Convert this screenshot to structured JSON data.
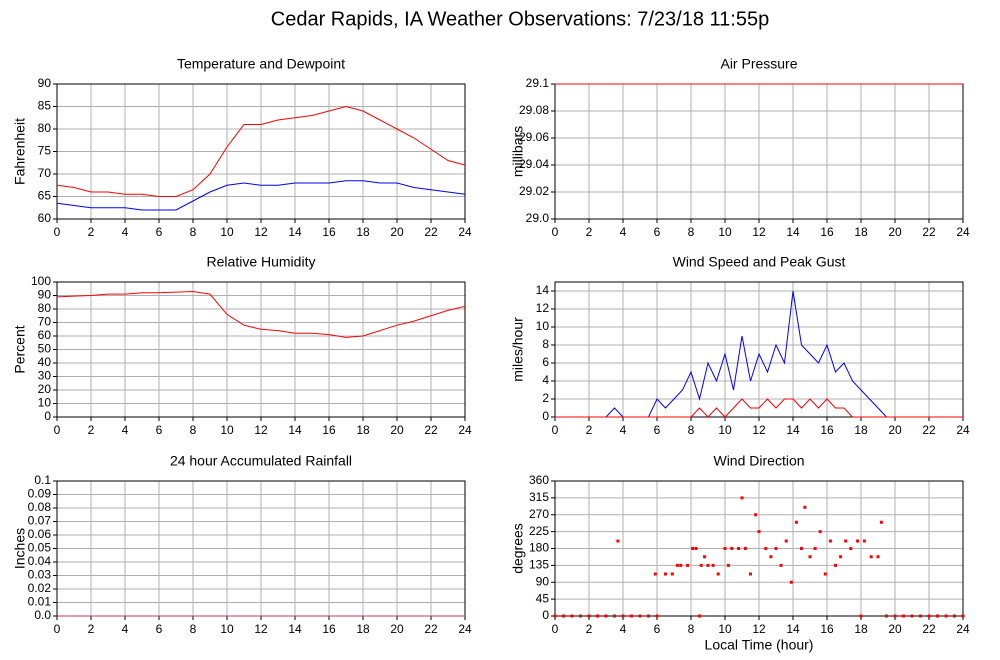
{
  "title": "Cedar Rapids, IA Weather Observations: 7/23/18 11:55p",
  "chart_data": [
    {
      "type": "line",
      "title": "Temperature and Dewpoint",
      "ylabel": "Fahrenheit",
      "grid": true,
      "xlim": [
        0,
        24
      ],
      "xticks": [
        0,
        2,
        4,
        6,
        8,
        10,
        12,
        14,
        16,
        18,
        20,
        22,
        24
      ],
      "ylim": [
        60,
        90
      ],
      "yticks": [
        60,
        65,
        70,
        75,
        80,
        85,
        90
      ],
      "x": [
        0,
        1,
        2,
        3,
        4,
        5,
        6,
        7,
        8,
        9,
        10,
        11,
        12,
        13,
        14,
        15,
        16,
        17,
        18,
        19,
        20,
        21,
        22,
        23,
        24
      ],
      "series": [
        {
          "color": "#ff0000",
          "values": [
            67.5,
            67,
            66,
            66,
            65.5,
            65.5,
            65,
            65,
            66.5,
            70,
            76,
            81,
            81,
            82,
            82.5,
            83,
            84,
            85,
            84,
            82,
            80,
            78,
            75.5,
            73,
            72
          ]
        },
        {
          "color": "#0000ff",
          "values": [
            63.5,
            63,
            62.5,
            62.5,
            62.5,
            62,
            62,
            62,
            64,
            66,
            67.5,
            68,
            67.5,
            67.5,
            68,
            68,
            68,
            68.5,
            68.5,
            68,
            68,
            67,
            66.5,
            66,
            65.5
          ]
        }
      ]
    },
    {
      "type": "line",
      "title": "Air Pressure",
      "ylabel": "millibars",
      "grid": true,
      "xlim": [
        0,
        24
      ],
      "xticks": [
        0,
        2,
        4,
        6,
        8,
        10,
        12,
        14,
        16,
        18,
        20,
        22,
        24
      ],
      "ylim": [
        29,
        29.1
      ],
      "yticks": [
        {
          "value": 29,
          "label": "29.0"
        },
        29.02,
        29.04,
        29.06,
        29.08,
        29.1
      ],
      "x": [
        0,
        24
      ],
      "series": [
        {
          "color": "#ff0000",
          "values": [
            29.1,
            29.1
          ]
        }
      ]
    },
    {
      "type": "line",
      "title": "Relative Humidity",
      "ylabel": "Percent",
      "grid": true,
      "xlim": [
        0,
        24
      ],
      "xticks": [
        0,
        2,
        4,
        6,
        8,
        10,
        12,
        14,
        16,
        18,
        20,
        22,
        24
      ],
      "ylim": [
        0,
        100
      ],
      "yticks": [
        0,
        10,
        20,
        30,
        40,
        50,
        60,
        70,
        80,
        90,
        100
      ],
      "x": [
        0,
        1,
        2,
        3,
        4,
        5,
        6,
        7,
        8,
        9,
        10,
        11,
        12,
        13,
        14,
        15,
        16,
        17,
        18,
        19,
        20,
        21,
        22,
        23,
        24
      ],
      "series": [
        {
          "color": "#ff0000",
          "values": [
            89,
            89.5,
            90,
            91,
            91,
            92,
            92,
            92.5,
            93,
            91,
            76,
            68,
            65,
            64,
            62,
            62,
            61,
            59,
            60,
            64,
            68,
            71,
            75,
            79,
            82
          ]
        }
      ]
    },
    {
      "type": "line",
      "title": "Wind Speed and Peak Gust",
      "ylabel": "miles/hour",
      "grid": true,
      "xlim": [
        0,
        24
      ],
      "xticks": [
        0,
        2,
        4,
        6,
        8,
        10,
        12,
        14,
        16,
        18,
        20,
        22,
        24
      ],
      "ylim": [
        0,
        15
      ],
      "yticks": [
        0,
        2,
        4,
        6,
        8,
        10,
        12,
        14
      ],
      "x": [
        0,
        0.5,
        1,
        1.5,
        2,
        2.5,
        3,
        3.5,
        4,
        4.5,
        5,
        5.5,
        6,
        6.5,
        7,
        7.5,
        8,
        8.5,
        9,
        9.5,
        10,
        10.5,
        11,
        11.5,
        12,
        12.5,
        13,
        13.5,
        14,
        14.5,
        15,
        15.5,
        16,
        16.5,
        17,
        17.5,
        18,
        18.5,
        19,
        19.5,
        20,
        20.5,
        21,
        21.5,
        22,
        22.5,
        23,
        23.5,
        24
      ],
      "series": [
        {
          "color": "#0000ff",
          "values": [
            0,
            0,
            0,
            0,
            0,
            0,
            0,
            1,
            0,
            0,
            0,
            0,
            2,
            1,
            2,
            3,
            5,
            2,
            6,
            4,
            7,
            3,
            9,
            4,
            7,
            5,
            8,
            6,
            14,
            8,
            7,
            6,
            8,
            5,
            6,
            4,
            3,
            2,
            1,
            0,
            0,
            0,
            0,
            0,
            0,
            0,
            0,
            0,
            0
          ]
        },
        {
          "color": "#ff0000",
          "values": [
            0,
            0,
            0,
            0,
            0,
            0,
            0,
            0,
            0,
            0,
            0,
            0,
            0,
            0,
            0,
            0,
            0,
            1,
            0,
            1,
            0,
            1,
            2,
            1,
            1,
            2,
            1,
            2,
            2,
            1,
            2,
            1,
            2,
            1,
            1,
            0,
            0,
            0,
            0,
            0,
            0,
            0,
            0,
            0,
            0,
            0,
            0,
            0,
            0
          ]
        }
      ]
    },
    {
      "type": "line",
      "title": "24 hour Accumulated Rainfall",
      "ylabel": "Inches",
      "grid": true,
      "xlim": [
        0,
        24
      ],
      "xticks": [
        0,
        2,
        4,
        6,
        8,
        10,
        12,
        14,
        16,
        18,
        20,
        22,
        24
      ],
      "ylim": [
        0,
        0.1
      ],
      "yticks": [
        {
          "value": 0,
          "label": "0.0"
        },
        0.01,
        0.02,
        0.03,
        0.04,
        0.05,
        0.06,
        0.07,
        0.08,
        0.09,
        0.1
      ],
      "x": [
        0,
        24
      ],
      "series": [
        {
          "color": "#cc3366",
          "values": [
            0,
            0
          ]
        }
      ]
    },
    {
      "type": "scatter",
      "title": "Wind Direction",
      "ylabel": "degrees",
      "xlabel": "Local Time (hour)",
      "grid": true,
      "xlim": [
        0,
        24
      ],
      "xticks": [
        0,
        2,
        4,
        6,
        8,
        10,
        12,
        14,
        16,
        18,
        20,
        22,
        24
      ],
      "ylim": [
        0,
        360
      ],
      "yticks": [
        0,
        45,
        90,
        135,
        180,
        225,
        270,
        315,
        360
      ],
      "color": "#ff0000",
      "x": [
        0,
        0.5,
        1,
        1.5,
        2,
        2.5,
        3,
        3.5,
        3.7,
        4,
        4.5,
        5,
        5.5,
        5.9,
        6,
        6.5,
        6.9,
        7.2,
        7.4,
        7.8,
        8.1,
        8.3,
        8.5,
        8.6,
        8.8,
        9,
        9.3,
        9.6,
        10,
        10.2,
        10.4,
        10.8,
        11,
        11.2,
        11.5,
        11.8,
        12,
        12.4,
        12.7,
        13,
        13.3,
        13.6,
        13.9,
        14.2,
        14.5,
        14.7,
        15,
        15.3,
        15.6,
        15.9,
        16.2,
        16.5,
        16.8,
        17.1,
        17.4,
        17.8,
        18,
        18.2,
        18.6,
        19,
        19.2,
        19.5,
        20,
        20.5,
        21,
        21.5,
        22,
        22.5,
        23,
        23.5,
        24
      ],
      "values": [
        0,
        0,
        0,
        0,
        0,
        0,
        0,
        0,
        200,
        0,
        0,
        0,
        0,
        112,
        0,
        112,
        112,
        135,
        135,
        135,
        180,
        180,
        0,
        135,
        158,
        135,
        135,
        112,
        180,
        135,
        180,
        180,
        315,
        180,
        112,
        270,
        225,
        180,
        158,
        180,
        135,
        200,
        90,
        250,
        180,
        290,
        158,
        180,
        225,
        112,
        200,
        135,
        158,
        200,
        180,
        200,
        0,
        200,
        158,
        158,
        250,
        0,
        0,
        0,
        0,
        0,
        0,
        0,
        0,
        0,
        0
      ]
    }
  ]
}
